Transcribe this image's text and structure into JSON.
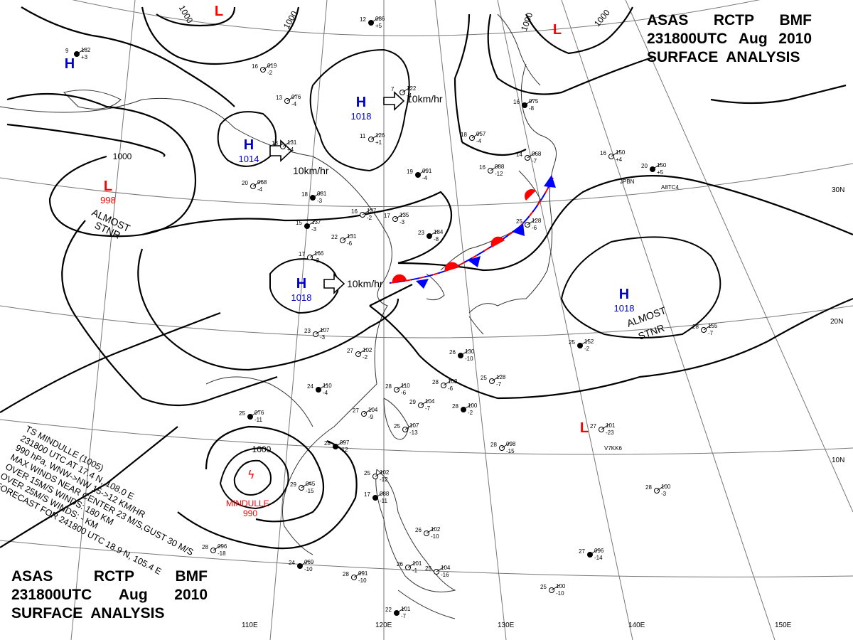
{
  "header": {
    "agency_line": [
      "ASAS",
      "RCTP",
      "BMF"
    ],
    "time_line": [
      "231800UTC",
      "Aug",
      "2010"
    ],
    "product": "SURFACE  ANALYSIS"
  },
  "pressure_centers": [
    {
      "type": "H",
      "value": "",
      "color": "#0000cc"
    },
    {
      "type": "L",
      "value": "",
      "color": "#ff0000"
    },
    {
      "type": "L",
      "value": "",
      "color": "#ff0000"
    },
    {
      "type": "H",
      "value": "1018",
      "color": "#0000cc"
    },
    {
      "type": "H",
      "value": "1014",
      "color": "#0000cc"
    },
    {
      "type": "L",
      "value": "998",
      "color": "#ff0000"
    },
    {
      "type": "H",
      "value": "1018",
      "color": "#0000cc"
    },
    {
      "type": "H",
      "value": "1018",
      "color": "#0000cc"
    },
    {
      "type": "L",
      "value": "",
      "color": "#ff0000"
    }
  ],
  "isobar_labels": [
    "1000",
    "1000",
    "1000",
    "1000",
    "1000",
    "1000"
  ],
  "motion_labels": [
    "10km/hr",
    "10km/hr",
    "10km/hr"
  ],
  "stationary_notes": [
    {
      "line1": "ALMOST",
      "line2": "STNR"
    },
    {
      "line1": "ALMOST",
      "line2": "STNR"
    }
  ],
  "lat_labels": [
    "30N",
    "20N",
    "10N"
  ],
  "lon_labels": [
    "110E",
    "120E",
    "130E",
    "140E",
    "150E"
  ],
  "typhoon": {
    "name": "MINDULLE",
    "pressure": "990"
  },
  "storm_note": [
    "TS MINDULLE (1005)",
    "231800 UTC  AT 17.4 N, 108.0 E",
    "990 hPa, WNW->NW  15->12 KM/HR",
    "MAX WINDS NEAR CENTER 23 M/S,GUST 30 M/S",
    "OVER 15M/S WINDS: 180 KM",
    "OVER 25M/S WINDS: - KM",
    "FORECAST FOR 241800 UTC 18.9 N, 105.4 E"
  ],
  "station_codes": [
    "JPBN",
    "A8TC4",
    "V7KK6"
  ],
  "station_obs": [
    {
      "t": "12",
      "p": "086",
      "d": "+5"
    },
    {
      "t": "16",
      "p": "019",
      "d": "-2"
    },
    {
      "t": "13",
      "p": "076",
      "d": "-4"
    },
    {
      "t": "9",
      "p": "182",
      "d": "+3"
    },
    {
      "t": "18",
      "p": "131",
      "d": "+4"
    },
    {
      "t": "20",
      "p": "068",
      "d": "-4"
    },
    {
      "t": "18",
      "p": "081",
      "d": "-3"
    },
    {
      "t": "11",
      "p": "126",
      "d": "+1"
    },
    {
      "t": "7",
      "p": "122",
      "d": "-4"
    },
    {
      "t": "19",
      "p": "091",
      "d": "-4"
    },
    {
      "t": "16",
      "p": "127",
      "d": "-2"
    },
    {
      "t": "17",
      "p": "135",
      "d": "-3"
    },
    {
      "t": "15",
      "p": "137",
      "d": "-3"
    },
    {
      "t": "22",
      "p": "131",
      "d": "-6"
    },
    {
      "t": "17",
      "p": "166",
      "d": "-3"
    },
    {
      "t": "23",
      "p": "184",
      "d": "-8"
    },
    {
      "t": "18",
      "p": "057",
      "d": "-4"
    },
    {
      "t": "16",
      "p": "088",
      "d": "-12"
    },
    {
      "t": "16",
      "p": "075",
      "d": "-8"
    },
    {
      "t": "14",
      "p": "068",
      "d": "-7"
    },
    {
      "t": "16",
      "p": "150",
      "d": "+4"
    },
    {
      "t": "20",
      "p": "150",
      "d": "+5"
    },
    {
      "t": "25",
      "p": "128",
      "d": "-6"
    },
    {
      "t": "28",
      "p": "155",
      "d": "-7"
    },
    {
      "t": "25",
      "p": "152",
      "d": "-2"
    },
    {
      "t": "23",
      "p": "107",
      "d": "-3"
    },
    {
      "t": "27",
      "p": "102",
      "d": "-2"
    },
    {
      "t": "26",
      "p": "130",
      "d": "-10"
    },
    {
      "t": "25",
      "p": "128",
      "d": "-7"
    },
    {
      "t": "28",
      "p": "103",
      "d": "-6"
    },
    {
      "t": "24",
      "p": "110",
      "d": "-4"
    },
    {
      "t": "28",
      "p": "110",
      "d": "-6"
    },
    {
      "t": "29",
      "p": "104",
      "d": "-7"
    },
    {
      "t": "28",
      "p": "100",
      "d": "-2"
    },
    {
      "t": "27",
      "p": "104",
      "d": "-9"
    },
    {
      "t": "25",
      "p": "107",
      "d": "-13"
    },
    {
      "t": "28",
      "p": "097",
      "d": "-12"
    },
    {
      "t": "28",
      "p": "098",
      "d": "-15"
    },
    {
      "t": "27",
      "p": "101",
      "d": "-23"
    },
    {
      "t": "25",
      "p": "076",
      "d": "-11"
    },
    {
      "t": "29",
      "p": "045",
      "d": "-15"
    },
    {
      "t": "25",
      "p": "102",
      "d": "-12"
    },
    {
      "t": "17",
      "p": "088",
      "d": "-11"
    },
    {
      "t": "26",
      "p": "102",
      "d": "-10"
    },
    {
      "t": "28",
      "p": "096",
      "d": "-18"
    },
    {
      "t": "24",
      "p": "069",
      "d": "-10"
    },
    {
      "t": "28",
      "p": "091",
      "d": "-10"
    },
    {
      "t": "26",
      "p": "101",
      "d": "-1"
    },
    {
      "t": "22",
      "p": "101",
      "d": "-7"
    },
    {
      "t": "25",
      "p": "104",
      "d": "-16"
    },
    {
      "t": "25",
      "p": "100",
      "d": "-10"
    },
    {
      "t": "27",
      "p": "096",
      "d": "-14"
    },
    {
      "t": "28",
      "p": "100",
      "d": "-3"
    }
  ]
}
